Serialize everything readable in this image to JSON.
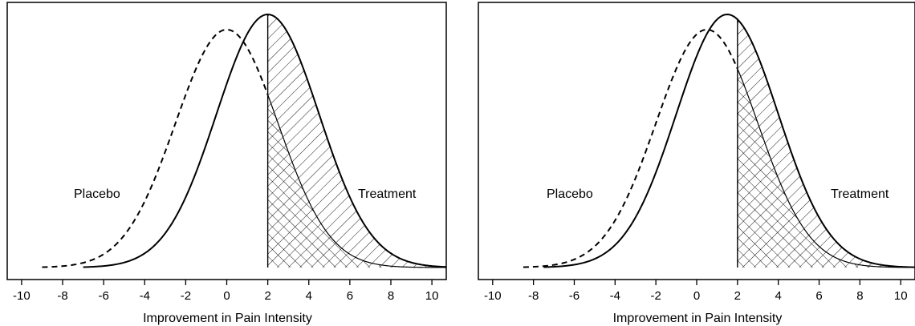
{
  "chart_data": [
    {
      "type": "area",
      "xlabel": "Improvement in Pain Intensity",
      "xticks": [
        -10,
        -8,
        -6,
        -4,
        -2,
        0,
        2,
        4,
        6,
        8,
        10
      ],
      "xlim": [
        -10.7,
        10.7
      ],
      "threshold": 2,
      "series": [
        {
          "name": "Placebo",
          "style": "dashed",
          "mean": 0.0,
          "sd": 2.5,
          "x_start": -9.0,
          "x_end": 2.0,
          "peak": 0.94
        },
        {
          "name": "Treatment",
          "style": "solid",
          "mean": 2.0,
          "sd": 2.5,
          "x_start": -7.0,
          "x_end": 10.7,
          "peak": 1.0
        }
      ],
      "labels": {
        "placebo": "Placebo",
        "treatment": "Treatment"
      },
      "regions": [
        {
          "type": "cross-hatch",
          "description": "Placebo above threshold"
        },
        {
          "type": "diagonal-hatch",
          "description": "Additional treatment above threshold"
        }
      ]
    },
    {
      "type": "area",
      "xlabel": "Improvement in Pain Intensity",
      "xticks": [
        -10,
        -8,
        -6,
        -4,
        -2,
        0,
        2,
        4,
        6,
        8,
        10
      ],
      "xlim": [
        -10.7,
        10.7
      ],
      "threshold": 2,
      "series": [
        {
          "name": "Placebo",
          "style": "dashed",
          "mean": 0.5,
          "sd": 2.5,
          "x_start": -8.5,
          "x_end": 2.0,
          "peak": 0.94
        },
        {
          "name": "Treatment",
          "style": "solid",
          "mean": 1.5,
          "sd": 2.5,
          "x_start": -7.5,
          "x_end": 10.7,
          "peak": 1.0
        }
      ],
      "labels": {
        "placebo": "Placebo",
        "treatment": "Treatment"
      },
      "regions": [
        {
          "type": "cross-hatch",
          "description": "Placebo above threshold"
        },
        {
          "type": "diagonal-hatch",
          "description": "Additional treatment above threshold"
        }
      ]
    }
  ]
}
